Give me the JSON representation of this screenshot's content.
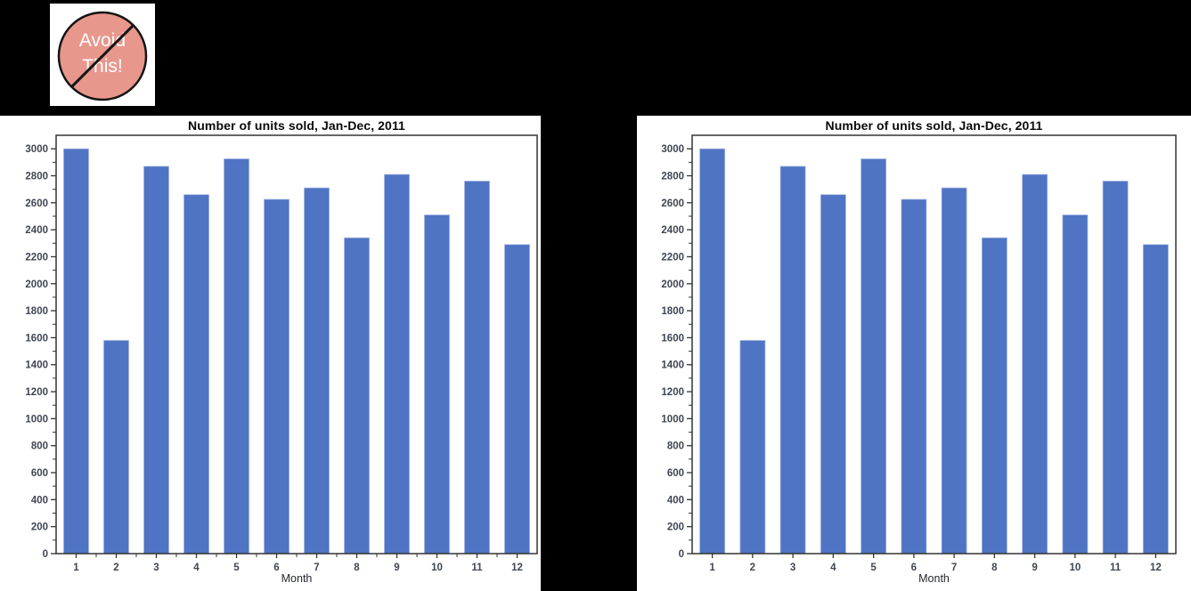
{
  "page": {
    "background_color": "#000000"
  },
  "badge": {
    "line1": "Avoid",
    "line2": "This!",
    "circle_color": "#e8978d",
    "outline_color": "#141414",
    "text_color": "#ffffff"
  },
  "chart_data": [
    {
      "type": "bar",
      "title": "Number of units sold, Jan-Dec, 2011",
      "xlabel": "Month",
      "ylabel": "",
      "categories": [
        "1",
        "2",
        "3",
        "4",
        "5",
        "6",
        "7",
        "8",
        "9",
        "10",
        "11",
        "12"
      ],
      "values": [
        3000,
        1580,
        2870,
        2660,
        2925,
        2625,
        2710,
        2340,
        2810,
        2510,
        2760,
        2290
      ],
      "ylim": [
        0,
        3000
      ],
      "y_tick_step": 200,
      "y_minor_tick_step": 100,
      "x_minor_ticks": true,
      "grid": false,
      "legend": "none",
      "bar_color": "#4f74c4",
      "bar_edge_color": "#9fb1e1",
      "axis_color": "#333333",
      "tick_label_color": "#3f4652",
      "title_color": "#0a0a0a"
    },
    {
      "type": "bar",
      "title": "Number of units sold, Jan-Dec, 2011",
      "xlabel": "Month",
      "ylabel": "",
      "categories": [
        "1",
        "2",
        "3",
        "4",
        "5",
        "6",
        "7",
        "8",
        "9",
        "10",
        "11",
        "12"
      ],
      "values": [
        3000,
        1580,
        2870,
        2660,
        2925,
        2625,
        2710,
        2340,
        2810,
        2510,
        2760,
        2290
      ],
      "ylim": [
        0,
        3000
      ],
      "y_tick_step": 200,
      "y_minor_tick_step": 100,
      "x_minor_ticks": false,
      "grid": false,
      "legend": "none",
      "bar_color": "#4f74c4",
      "bar_edge_color": "#9fb1e1",
      "axis_color": "#333333",
      "tick_label_color": "#3f4652",
      "title_color": "#0a0a0a"
    }
  ]
}
